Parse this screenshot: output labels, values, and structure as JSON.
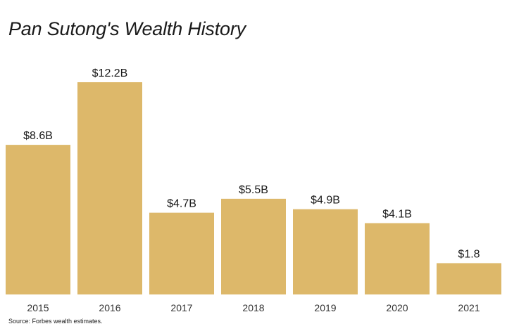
{
  "chart_data": {
    "type": "bar",
    "title": "Pan Sutong's Wealth History",
    "source": "Source: Forbes wealth estimates.",
    "categories": [
      "2015",
      "2016",
      "2017",
      "2018",
      "2019",
      "2020",
      "2021"
    ],
    "values": [
      8.6,
      12.2,
      4.7,
      5.5,
      4.9,
      4.1,
      1.8
    ],
    "data_labels": [
      "$8.6B",
      "$12.2B",
      "$4.7B",
      "$5.5B",
      "$4.9B",
      "$4.1B",
      "$1.8"
    ],
    "xlabel": "",
    "ylabel": "",
    "ylim": [
      0,
      12.2
    ],
    "grid": false,
    "legend": "none",
    "bar_color": "#DDB86A"
  }
}
